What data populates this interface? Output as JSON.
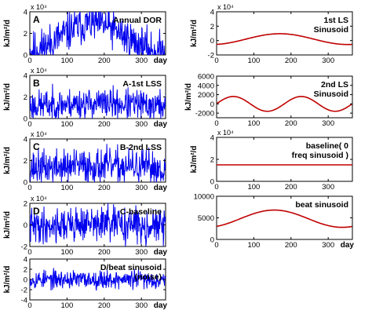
{
  "figure": {
    "day_label": "day",
    "ylabel": "kJ/m²/d"
  },
  "chart_data": [
    {
      "id": "A",
      "type": "line",
      "letter": "A",
      "annotation": [
        "Annual DOR"
      ],
      "ylabel": "kJ/m²/d",
      "xlabel": "day",
      "xlim": [
        0,
        365
      ],
      "xticks": [
        0,
        100,
        200,
        300
      ],
      "ylim": [
        0,
        4
      ],
      "yticks": [
        0,
        2,
        4
      ],
      "y_multiplier_label": "x 10⁴",
      "series": [
        {
          "kind": "noisy",
          "color": "#0000ee",
          "base": 1.6,
          "amp": 1.3,
          "phase_peak_day": 170,
          "noise": 0.9,
          "clip_min": 0,
          "seed": 11
        }
      ]
    },
    {
      "id": "B",
      "type": "line",
      "letter": "B",
      "annotation": [
        "A-1st LSS"
      ],
      "ylabel": "kJ/m²/d",
      "xlabel": "day",
      "xlim": [
        0,
        365
      ],
      "xticks": [
        0,
        100,
        200,
        300
      ],
      "ylim": [
        0,
        4
      ],
      "yticks": [
        0,
        2,
        4
      ],
      "y_multiplier_label": "x 10⁴",
      "series": [
        {
          "kind": "noisy",
          "color": "#0000ee",
          "base": 1.3,
          "amp": 0.1,
          "phase_peak_day": 170,
          "noise": 0.7,
          "clip_min": 0,
          "seed": 23
        }
      ]
    },
    {
      "id": "C",
      "type": "line",
      "letter": "C",
      "annotation": [
        "B-2nd LSS"
      ],
      "ylabel": "kJ/m²/d",
      "xlabel": "day",
      "xlim": [
        0,
        365
      ],
      "xticks": [
        0,
        100,
        200,
        300
      ],
      "ylim": [
        0,
        4
      ],
      "yticks": [
        0,
        2,
        4
      ],
      "y_multiplier_label": "x 10⁴",
      "series": [
        {
          "kind": "noisy",
          "color": "#0000ee",
          "base": 1.4,
          "amp": 0.1,
          "phase_peak_day": 170,
          "noise": 0.8,
          "clip_min": 0,
          "seed": 37
        }
      ]
    },
    {
      "id": "D",
      "type": "line",
      "letter": "D",
      "annotation": [
        "C-baseline"
      ],
      "ylabel": "kJ/m²/d",
      "xlabel": "day",
      "xlim": [
        0,
        365
      ],
      "xticks": [
        0,
        100,
        200,
        300
      ],
      "ylim": [
        -2,
        2
      ],
      "yticks": [
        -2,
        0,
        2
      ],
      "y_multiplier_label": "x 10⁴",
      "series": [
        {
          "kind": "noisy",
          "color": "#0000ee",
          "base": 0.0,
          "amp": 0.1,
          "phase_peak_day": 170,
          "noise": 0.8,
          "seed": 41
        }
      ]
    },
    {
      "id": "E",
      "type": "line",
      "letter": "",
      "annotation": [
        "D/beat sinusoid",
        "(noise)"
      ],
      "ylabel": "kJ/m²/d",
      "xlabel": "day",
      "xlim": [
        0,
        365
      ],
      "xticks": [
        0,
        100,
        200,
        300
      ],
      "ylim": [
        -4,
        4
      ],
      "yticks": [
        -4,
        -2,
        0,
        2,
        4
      ],
      "y_multiplier_label": "",
      "series": [
        {
          "kind": "noisy",
          "color": "#0000ee",
          "base": 0.0,
          "amp": 0.0,
          "phase_peak_day": 170,
          "noise": 0.9,
          "seed": 53
        }
      ]
    },
    {
      "id": "F",
      "type": "line",
      "letter": "",
      "annotation": [
        "1st LS",
        "Sinusoid"
      ],
      "ylabel": "kJ/m²/d",
      "xlabel": "",
      "xlim": [
        0,
        365
      ],
      "xticks": [
        0,
        100,
        200,
        300
      ],
      "ylim": [
        -2,
        4
      ],
      "yticks": [
        -2,
        0,
        2,
        4
      ],
      "y_multiplier_label": "x 10⁴",
      "series": [
        {
          "kind": "sine",
          "color": "#c00000",
          "offset": 0.2,
          "amplitude": 0.75,
          "period": 365,
          "peak_day": 170
        }
      ]
    },
    {
      "id": "G",
      "type": "line",
      "letter": "",
      "annotation": [
        "2nd LS",
        "Sinusoid"
      ],
      "ylabel": "kJ/m²/d",
      "xlabel": "",
      "xlim": [
        0,
        365
      ],
      "xticks": [
        0,
        100,
        200,
        300
      ],
      "ylim": [
        -3000,
        6000
      ],
      "yticks": [
        -2000,
        0,
        2000,
        4000,
        6000
      ],
      "y_multiplier_label": "",
      "series": [
        {
          "kind": "sine",
          "color": "#c00000",
          "offset": 0,
          "amplitude": 1600,
          "period": 182.5,
          "peak_day": 45
        }
      ]
    },
    {
      "id": "H",
      "type": "line",
      "letter": "",
      "annotation": [
        "baseline( 0",
        "freq sinusoid )"
      ],
      "ylabel": "kJ/m²/d",
      "xlabel": "",
      "xlim": [
        0,
        365
      ],
      "xticks": [
        0,
        100,
        200,
        300
      ],
      "ylim": [
        0,
        4
      ],
      "yticks": [
        0,
        2,
        4
      ],
      "y_multiplier_label": "x 10⁴",
      "series": [
        {
          "kind": "const",
          "color": "#c00000",
          "value": 1.5
        }
      ]
    },
    {
      "id": "I",
      "type": "line",
      "letter": "",
      "annotation": [
        "beat sinusoid"
      ],
      "ylabel": "",
      "xlabel": "day",
      "xlim": [
        0,
        365
      ],
      "xticks": [
        0,
        100,
        200,
        300
      ],
      "ylim": [
        0,
        10000
      ],
      "yticks": [
        0,
        5000,
        10000
      ],
      "y_multiplier_label": "",
      "series": [
        {
          "kind": "sine",
          "color": "#c00000",
          "offset": 4800,
          "amplitude": 2000,
          "period": 365,
          "peak_day": 155
        }
      ]
    }
  ]
}
